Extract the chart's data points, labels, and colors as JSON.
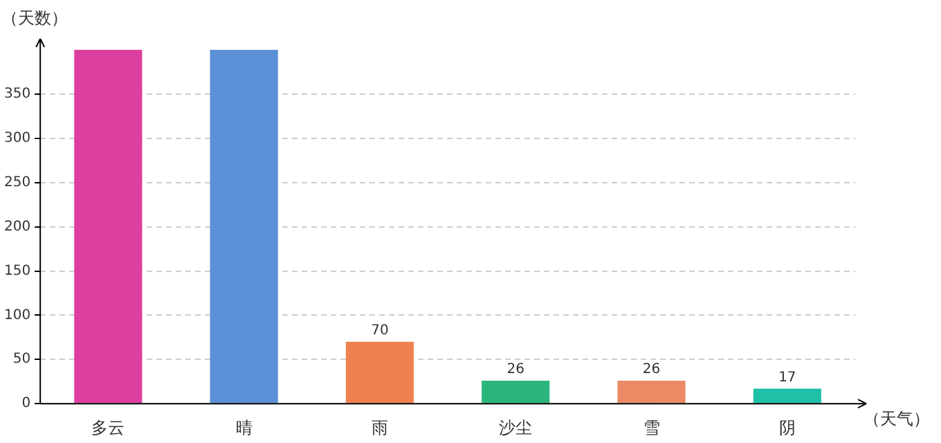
{
  "chart_data": {
    "type": "bar",
    "ylabel": "（天数）",
    "xlabel": "（天气）",
    "categories": [
      "多云",
      "晴",
      "雨",
      "沙尘",
      "雪",
      "阴"
    ],
    "values": [
      400,
      400,
      70,
      26,
      26,
      17
    ],
    "value_labels": [
      null,
      null,
      "70",
      "26",
      "26",
      "17"
    ],
    "colors": [
      "#dd3fa0",
      "#5b8fd6",
      "#f0804f",
      "#2ab57d",
      "#ea8b65",
      "#1ec0a8"
    ],
    "ylim": [
      0,
      400
    ],
    "yticks": [
      0,
      50,
      100,
      150,
      200,
      250,
      300,
      350
    ],
    "grid": "y"
  }
}
